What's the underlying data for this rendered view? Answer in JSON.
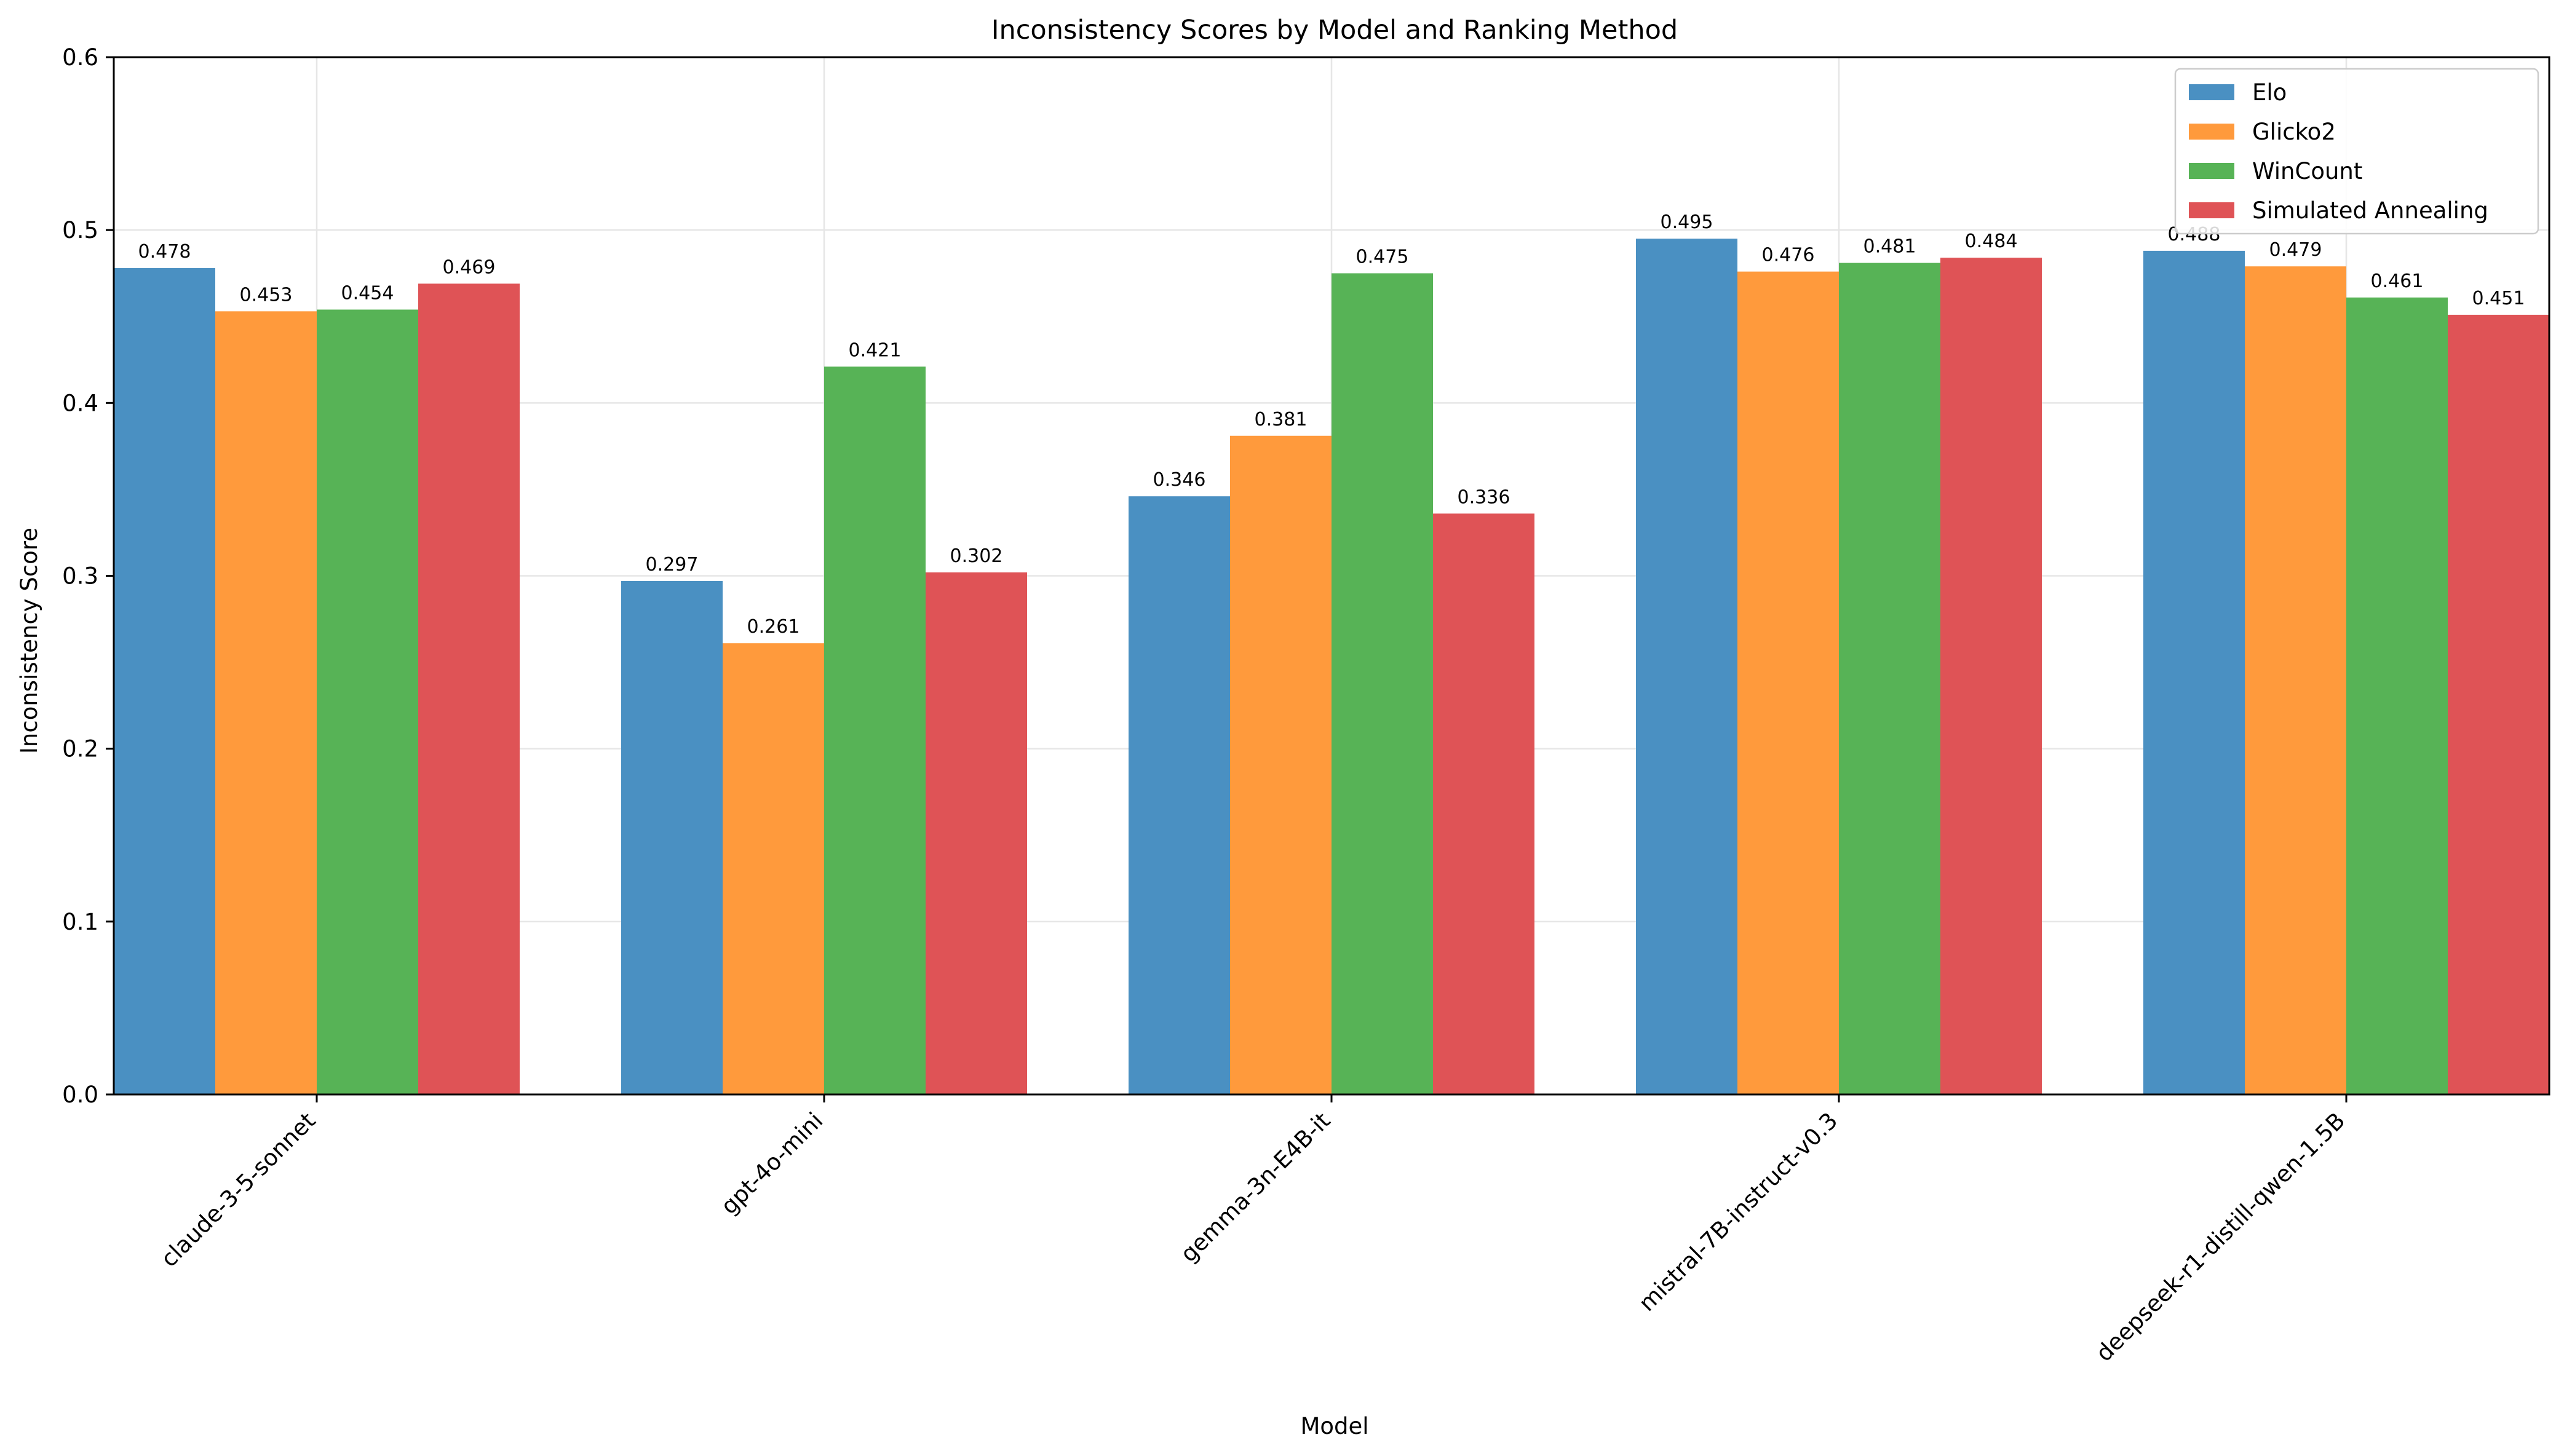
{
  "chart_data": {
    "type": "bar",
    "title": "Inconsistency Scores by Model and Ranking Method",
    "xlabel": "Model",
    "ylabel": "Inconsistency Score",
    "ylim": [
      0,
      0.6
    ],
    "yticks": [
      "0.0",
      "0.1",
      "0.2",
      "0.3",
      "0.4",
      "0.5",
      "0.6"
    ],
    "grid": true,
    "legend_position": "top-right",
    "categories": [
      "claude-3-5-sonnet",
      "gpt-4o-mini",
      "gemma-3n-E4B-it",
      "mistral-7B-instruct-v0.3",
      "deepseek-r1-distill-qwen-1.5B"
    ],
    "series": [
      {
        "name": "Elo",
        "color": "#4a90c2",
        "values": [
          0.478,
          0.297,
          0.346,
          0.495,
          0.488
        ],
        "labels": [
          "0.478",
          "0.297",
          "0.346",
          "0.495",
          "0.488"
        ]
      },
      {
        "name": "Glicko2",
        "color": "#ff9a3c",
        "values": [
          0.453,
          0.261,
          0.381,
          0.476,
          0.479
        ],
        "labels": [
          "0.453",
          "0.261",
          "0.381",
          "0.476",
          "0.479"
        ]
      },
      {
        "name": "WinCount",
        "color": "#57b356",
        "values": [
          0.454,
          0.421,
          0.475,
          0.481,
          0.461
        ],
        "labels": [
          "0.454",
          "0.421",
          "0.475",
          "0.481",
          "0.461"
        ]
      },
      {
        "name": "Simulated Annealing",
        "color": "#df5356",
        "values": [
          0.469,
          0.302,
          0.336,
          0.484,
          0.451
        ],
        "labels": [
          "0.469",
          "0.302",
          "0.336",
          "0.484",
          "0.451"
        ]
      }
    ]
  }
}
